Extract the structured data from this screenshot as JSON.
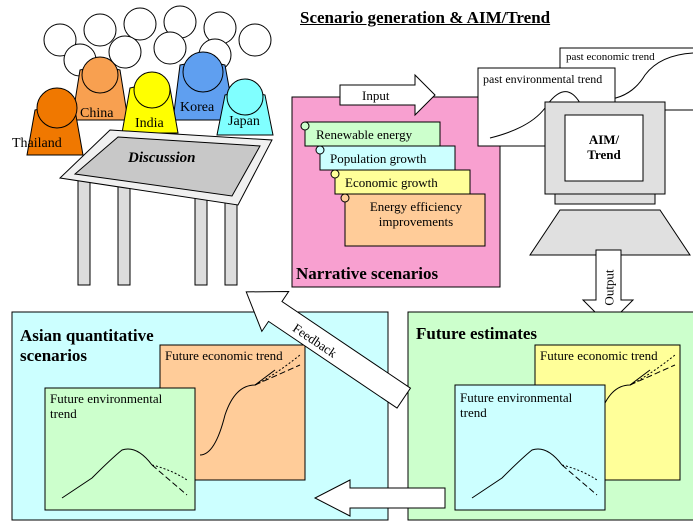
{
  "title": "Scenario generation & AIM/Trend",
  "discussion": {
    "participants": [
      "Thailand",
      "China",
      "India",
      "Korea",
      "Japan"
    ],
    "table_label": "Discussion"
  },
  "narrative": {
    "input_label": "Input",
    "items": [
      "Renewable energy",
      "Population growth",
      "Economic growth",
      "Energy efficiency improvements"
    ],
    "label": "Narrative scenarios"
  },
  "aim": {
    "past_trends": [
      "past economic trend",
      "past environmental trend"
    ],
    "screen_label": [
      "AIM/",
      "Trend"
    ],
    "output_label": "Output"
  },
  "feedback_label": "Feedback",
  "asian_scenarios": {
    "title": "Asian quantitative scenarios",
    "panels": [
      "Future economic trend",
      "Future environmental trend"
    ]
  },
  "future_estimates": {
    "title": "Future estimates",
    "panels": [
      "Future economic trend",
      "Future environmental trend"
    ]
  }
}
